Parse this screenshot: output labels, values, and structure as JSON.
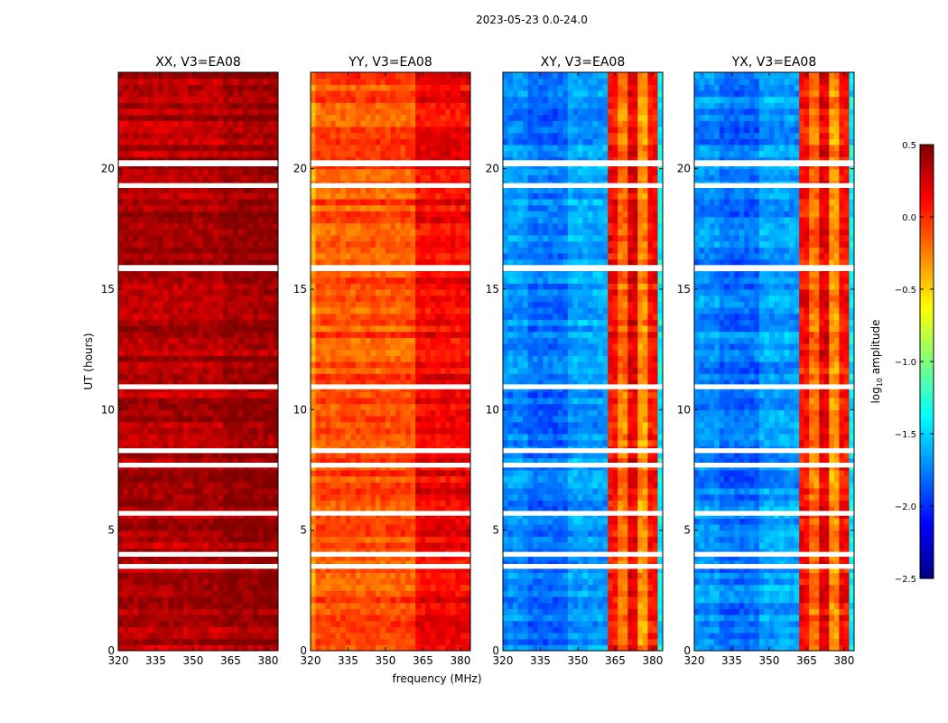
{
  "chart_data": {
    "type": "heatmap",
    "suptitle": "2023-05-23 0.0-24.0",
    "xlabel": "frequency (MHz)",
    "ylabel": "UT (hours)",
    "xlim": [
      320,
      384
    ],
    "ylim": [
      0,
      24
    ],
    "xticks": [
      "320",
      "335",
      "350",
      "365",
      "380"
    ],
    "yticks": [
      "0",
      "5",
      "10",
      "15",
      "20"
    ],
    "flagged_hours": [
      [
        20.1,
        20.35
      ],
      [
        19.2,
        19.4
      ],
      [
        15.75,
        16.0
      ],
      [
        10.85,
        11.05
      ],
      [
        8.2,
        8.4
      ],
      [
        7.6,
        7.8
      ],
      [
        5.6,
        5.8
      ],
      [
        3.9,
        4.1
      ],
      [
        3.4,
        3.6
      ]
    ],
    "panels": [
      {
        "title": "XX, V3=EA08",
        "segments": [
          [
            320,
            362,
            0.35
          ],
          [
            362,
            384,
            0.42
          ]
        ]
      },
      {
        "title": "YY, V3=EA08",
        "segments": [
          [
            320,
            322,
            -0.3
          ],
          [
            322,
            362,
            -0.1
          ],
          [
            362,
            384,
            0.15
          ]
        ]
      },
      {
        "title": "XY, V3=EA08",
        "segments": [
          [
            320,
            330,
            -1.7
          ],
          [
            330,
            345,
            -1.8
          ],
          [
            345,
            362,
            -1.65
          ],
          [
            362,
            366,
            0.1
          ],
          [
            366,
            370,
            -0.2
          ],
          [
            370,
            374,
            0.2
          ],
          [
            374,
            378,
            -0.3
          ],
          [
            378,
            381,
            0.1
          ],
          [
            381,
            384,
            -1.4
          ]
        ]
      },
      {
        "title": "YX, V3=EA08",
        "segments": [
          [
            320,
            330,
            -1.7
          ],
          [
            330,
            345,
            -1.8
          ],
          [
            345,
            362,
            -1.65
          ],
          [
            362,
            366,
            0.1
          ],
          [
            366,
            370,
            -0.2
          ],
          [
            370,
            374,
            0.2
          ],
          [
            374,
            378,
            -0.3
          ],
          [
            378,
            381,
            0.1
          ],
          [
            381,
            384,
            -1.4
          ]
        ]
      }
    ],
    "colorbar": {
      "label": "log10 amplitude",
      "label_base": "log",
      "label_sub": "10",
      "label_rest": " amplitude",
      "range": [
        -2.5,
        0.5
      ],
      "ticks": [
        "0.5",
        "0.0",
        "−0.5",
        "−1.0",
        "−1.5",
        "−2.0",
        "−2.5"
      ],
      "tick_values": [
        0.5,
        0,
        -0.5,
        -1,
        -1.5,
        -2,
        -2.5
      ],
      "colormap": "jet"
    }
  }
}
